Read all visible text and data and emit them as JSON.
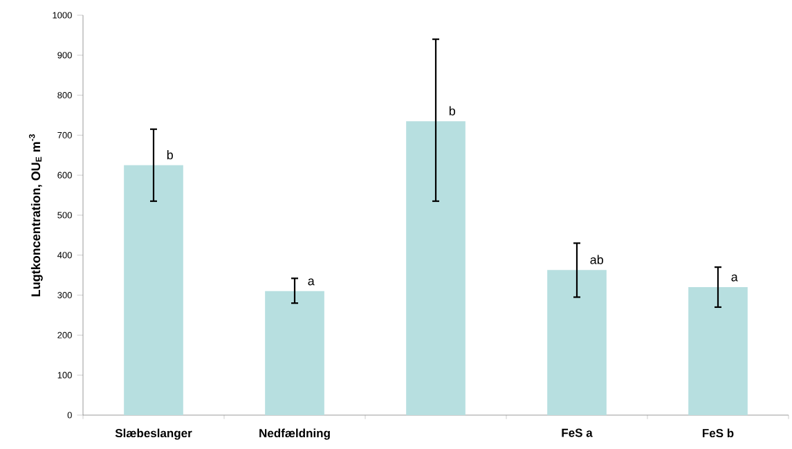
{
  "chart_data": {
    "type": "bar",
    "ylabel": "Lugtkoncentration, OU$_{E}$ m$^{-3}$",
    "categories": [
      "Slæbeslanger",
      "Nedfældning",
      null,
      "FeS a",
      "FeS b"
    ],
    "values": [
      625,
      310,
      735,
      363,
      320
    ],
    "errors": [
      [
        535,
        715
      ],
      [
        280,
        342
      ],
      [
        535,
        940
      ],
      [
        295,
        430
      ],
      [
        270,
        370
      ]
    ],
    "color": "#b7dfe0",
    "ylim": [
      0,
      1000
    ],
    "yticks": [
      0,
      100,
      200,
      300,
      400,
      500,
      600,
      700,
      800,
      900,
      1000
    ],
    "grid": false,
    "legend": false,
    "annotations": [
      {
        "text": "b",
        "x": "Slæbeslanger",
        "y": 625
      },
      {
        "text": "a",
        "x": "Nedfældning",
        "y": 310
      },
      {
        "text": "b",
        "y": 735
      },
      {
        "text": "ab",
        "x": "FeS a",
        "y": 363
      },
      {
        "text": "a",
        "x": "FeS b",
        "y": 320
      }
    ]
  }
}
